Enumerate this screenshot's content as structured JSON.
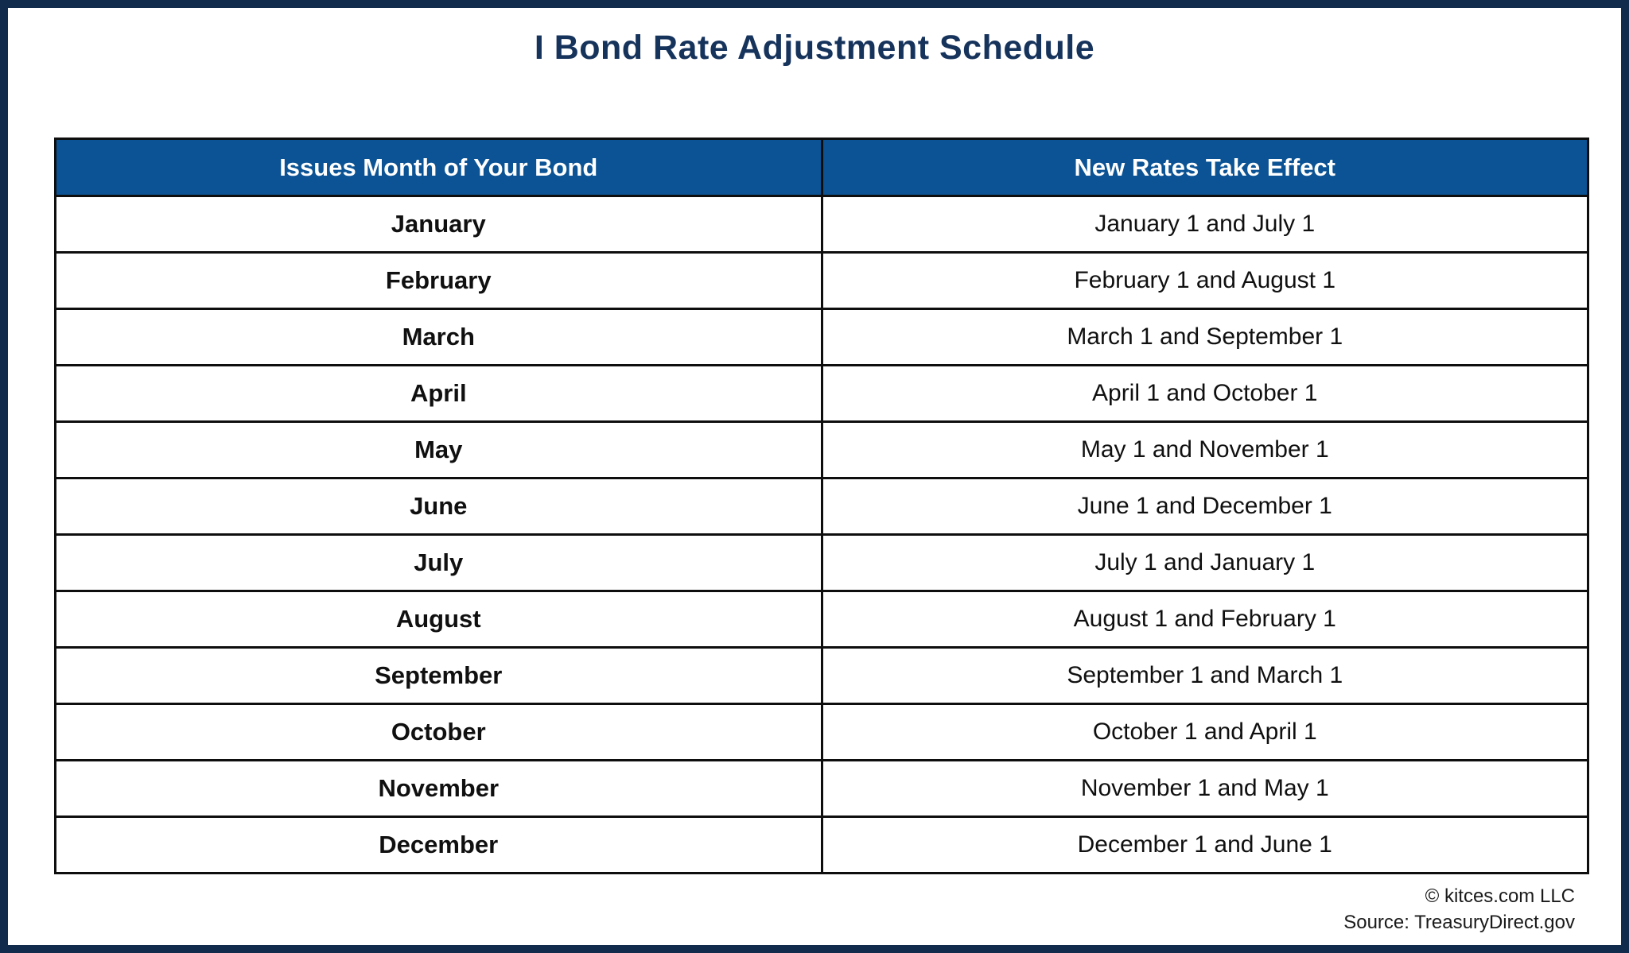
{
  "title": "I Bond Rate Adjustment Schedule",
  "colors": {
    "frame_navy": "#112B4C",
    "title_navy": "#16335C",
    "header_blue": "#0B5394",
    "grid_black": "#0e0e0e",
    "text_black": "#101010"
  },
  "table": {
    "headers": [
      "Issues Month of Your Bond",
      "New Rates Take Effect"
    ],
    "rows": [
      {
        "month": "January",
        "effect": "January 1 and July 1"
      },
      {
        "month": "February",
        "effect": "February 1 and August 1"
      },
      {
        "month": "March",
        "effect": "March 1 and September 1"
      },
      {
        "month": "April",
        "effect": "April 1 and October 1"
      },
      {
        "month": "May",
        "effect": "May 1 and November 1"
      },
      {
        "month": "June",
        "effect": "June 1 and December 1"
      },
      {
        "month": "July",
        "effect": "July 1 and January 1"
      },
      {
        "month": "August",
        "effect": "August 1 and February 1"
      },
      {
        "month": "September",
        "effect": "September 1 and March 1"
      },
      {
        "month": "October",
        "effect": "October 1 and April 1"
      },
      {
        "month": "November",
        "effect": "November 1 and May 1"
      },
      {
        "month": "December",
        "effect": "December 1 and June 1"
      }
    ]
  },
  "footer": {
    "copyright": "© kitces.com LLC",
    "source": "Source: TreasuryDirect.gov"
  },
  "chart_data": {
    "type": "table",
    "title": "I Bond Rate Adjustment Schedule",
    "columns": [
      "Issues Month of Your Bond",
      "New Rates Take Effect"
    ],
    "rows": [
      [
        "January",
        "January 1 and July 1"
      ],
      [
        "February",
        "February 1 and August 1"
      ],
      [
        "March",
        "March 1 and September 1"
      ],
      [
        "April",
        "April 1 and October 1"
      ],
      [
        "May",
        "May 1 and November 1"
      ],
      [
        "June",
        "June 1 and December 1"
      ],
      [
        "July",
        "July 1 and January 1"
      ],
      [
        "August",
        "August 1 and February 1"
      ],
      [
        "September",
        "September 1 and March 1"
      ],
      [
        "October",
        "October 1 and April 1"
      ],
      [
        "November",
        "November 1 and May 1"
      ],
      [
        "December",
        "December 1 and June 1"
      ]
    ],
    "layout_hints": {
      "header_background": "#0B5394",
      "header_text_color": "#ffffff",
      "column_split": "50/50",
      "left_column_bold": true,
      "grid": true
    }
  }
}
